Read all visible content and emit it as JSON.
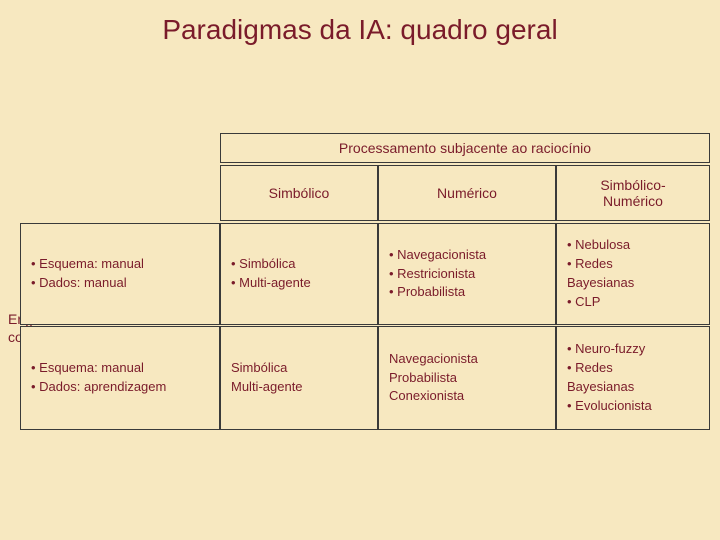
{
  "title": "Paradigmas da IA: quadro geral",
  "top_header": "Processamento subjacente ao raciocínio",
  "columns": {
    "c1": "Simbólico",
    "c2": "Numérico",
    "c3": "Simbólico-\nNumérico"
  },
  "side_label": "Engenharia do\nconhecimento",
  "rows": [
    {
      "label_lines": [
        "• Esquema: manual",
        "• Dados: manual"
      ],
      "c1": [
        "• Simbólica",
        "• Multi-agente"
      ],
      "c2": [
        "• Navegacionista",
        "• Restricionista",
        "• Probabilista"
      ],
      "c3": [
        "• Nebulosa",
        "• Redes",
        "Bayesianas",
        "• CLP"
      ]
    },
    {
      "label_lines": [
        "• Esquema: manual",
        "• Dados: aprendizagem"
      ],
      "c1": [
        "Simbólica",
        "Multi-agente"
      ],
      "c2": [
        "Navegacionista",
        "Probabilista",
        "Conexionista"
      ],
      "c3": [
        "• Neuro-fuzzy",
        "• Redes",
        "Bayesianas",
        "• Evolucionista"
      ]
    }
  ],
  "style": {
    "background": "#f7e8c0",
    "text_color": "#7a1b2a",
    "border_color": "#3a3a3a",
    "title_fontsize": 28,
    "cell_fontsize": 13,
    "header_fontsize": 14,
    "font_family": "Comic Sans MS"
  }
}
